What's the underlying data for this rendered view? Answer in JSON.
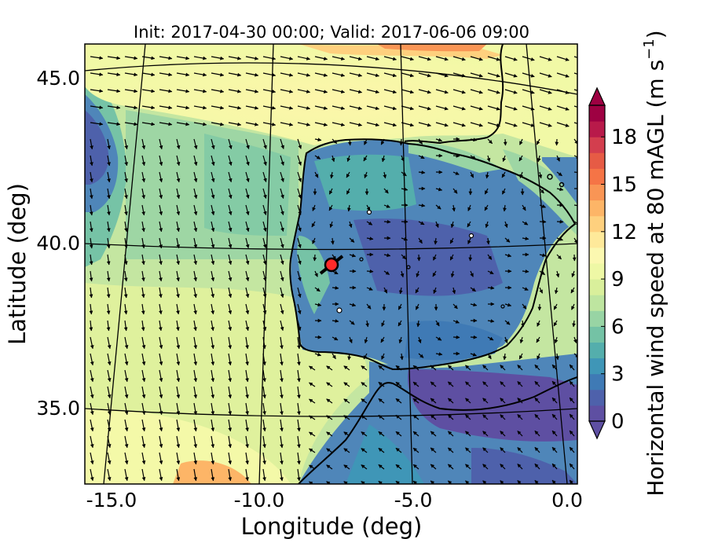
{
  "title": "Init: 2017-04-30 00:00; Valid: 2017-06-06 09:00",
  "axes": {
    "xlabel": "Longitude (deg)",
    "ylabel": "Latitude (deg)",
    "xticks": [
      "-15.0",
      "-10.0",
      "-5.0",
      "0.0"
    ],
    "yticks": [
      "45.0",
      "40.0",
      "35.0"
    ]
  },
  "colorbar": {
    "label": "Horizontal wind speed at 80 mAGL (m s",
    "label_exp": "−1",
    "label_close": ")",
    "ticks": [
      "0",
      "3",
      "6",
      "9",
      "12",
      "15",
      "18"
    ],
    "colors": [
      "#5e4fa2",
      "#4e61ab",
      "#3f7ab5",
      "#3f96b7",
      "#54aeac",
      "#74c2a5",
      "#98d4a4",
      "#bee5a0",
      "#d9ef9b",
      "#eef8a5",
      "#fbf8b0",
      "#fee99a",
      "#fed07e",
      "#fdb567",
      "#f99555",
      "#f57446",
      "#e65b45",
      "#d33e4e",
      "#b81a4a",
      "#9e0142"
    ],
    "max_value": 20
  },
  "marker": {
    "label": "site marker",
    "lon": -7.6,
    "lat": 39.4,
    "color": "#ff2a2a"
  },
  "colors": {
    "land_outline": "#000000",
    "graticule": "#000000",
    "arrow": "#000000"
  }
}
